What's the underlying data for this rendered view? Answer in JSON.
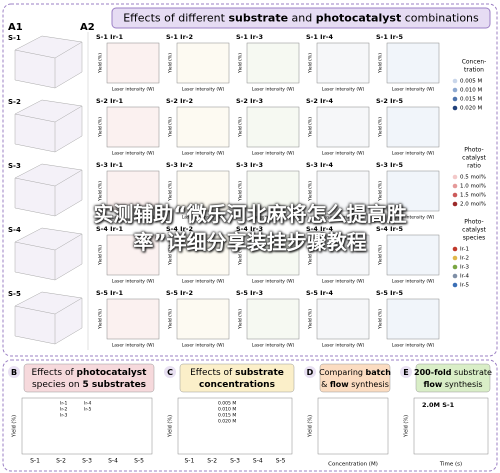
{
  "panel_a": {
    "labels": [
      "A1",
      "A2"
    ],
    "title": [
      {
        "t": "Effects of different "
      },
      {
        "t": "substrate",
        "b": true
      },
      {
        "t": " and "
      },
      {
        "t": "photocatalyst",
        "b": true
      },
      {
        "t": " combinations"
      }
    ],
    "a1_rows": [
      "S-1",
      "S-2",
      "S-3",
      "S-4",
      "S-5"
    ],
    "grid": [
      [
        "S-1 Ir-1",
        "S-1 Ir-2",
        "S-1 Ir-3",
        "S-1 Ir-4",
        "S-1 Ir-5"
      ],
      [
        "S-2 Ir-1",
        "S-2 Ir-2",
        "S-2 Ir-3",
        "S-2 Ir-4",
        "S-2 Ir-5"
      ],
      [
        "S-3 Ir-1",
        "S-3 Ir-2",
        "S-3 Ir-3",
        "S-3 Ir-4",
        "S-3 Ir-5"
      ],
      [
        "S-4 Ir-1",
        "S-4 Ir-2",
        "S-4 Ir-3",
        "S-4 Ir-4",
        "S-4 Ir-5"
      ],
      [
        "S-5 Ir-1",
        "S-5 Ir-2",
        "S-5 Ir-3",
        "S-5 Ir-4",
        "S-5 Ir-5"
      ]
    ],
    "x_label": "Laser intensity (W)",
    "y_label": "Yield (%)",
    "legends": [
      {
        "title": [
          "Concen-",
          "tration"
        ],
        "items": [
          {
            "name": "0.005 M",
            "color": "#c9d6ea"
          },
          {
            "name": "0.010 M",
            "color": "#8fa9d0"
          },
          {
            "name": "0.015 M",
            "color": "#4f74ad"
          },
          {
            "name": "0.020 M",
            "color": "#20407a"
          }
        ]
      },
      {
        "title": [
          "Photo-",
          "catalyst",
          "ratio"
        ],
        "items": [
          {
            "name": "0.5 mol%",
            "color": "#f3c9c9"
          },
          {
            "name": "1.0 mol%",
            "color": "#e59a9a"
          },
          {
            "name": "1.5 mol%",
            "color": "#cc5b5b"
          },
          {
            "name": "2.0 mol%",
            "color": "#9c2a2a"
          }
        ]
      },
      {
        "title": [
          "Photo-",
          "catalyst",
          "species"
        ],
        "items": [
          {
            "name": "Ir-1",
            "color": "#c0392b"
          },
          {
            "name": "Ir-2",
            "color": "#e0b84a"
          },
          {
            "name": "Ir-3",
            "color": "#7aa642"
          },
          {
            "name": "Ir-4",
            "color": "#7f8fa6"
          },
          {
            "name": "Ir-5",
            "color": "#3b6fb6"
          }
        ]
      }
    ]
  },
  "panel_b": {
    "label": "B",
    "title": [
      [
        {
          "t": "Effects of "
        },
        {
          "t": "photocatalyst",
          "b": true
        }
      ],
      [
        {
          "t": "species on "
        },
        {
          "t": "5 substrates",
          "b": true
        }
      ]
    ],
    "categories": [
      "S-1",
      "S-2",
      "S-3",
      "S-4",
      "S-5"
    ],
    "y_label": "Yield (%)"
  },
  "panel_c": {
    "label": "C",
    "title": [
      [
        {
          "t": "Effects of "
        },
        {
          "t": "substrate",
          "b": true
        }
      ],
      [
        {
          "t": "concentrations",
          "b": true
        }
      ]
    ],
    "categories": [
      "S-1",
      "S-2",
      "S-3",
      "S-4",
      "S-5"
    ],
    "y_label": "Yield (%)"
  },
  "panel_d": {
    "label": "D",
    "title": [
      [
        {
          "t": "Comparing "
        },
        {
          "t": "batch",
          "b": true
        }
      ],
      [
        {
          "t": "& "
        },
        {
          "t": "flow",
          "b": true
        },
        {
          "t": " synthesis"
        }
      ]
    ],
    "x_label": "Concentration (M)",
    "y_label": "Yield (%)"
  },
  "panel_e": {
    "label": "E",
    "title": [
      [
        {
          "t": "200-fold",
          "b": true
        },
        {
          "t": " substrate"
        }
      ],
      [
        {
          "t": "flow",
          "b": true
        },
        {
          "t": " synthesis"
        }
      ]
    ],
    "note": "2.0M S-1",
    "x_label": "Time (s)",
    "y_label": "Yield (%)"
  },
  "overlay": {
    "lines": [
      "实测辅助“微乐河北麻将怎么提高胜",
      "率”详细分享装挂步骤教程"
    ]
  }
}
